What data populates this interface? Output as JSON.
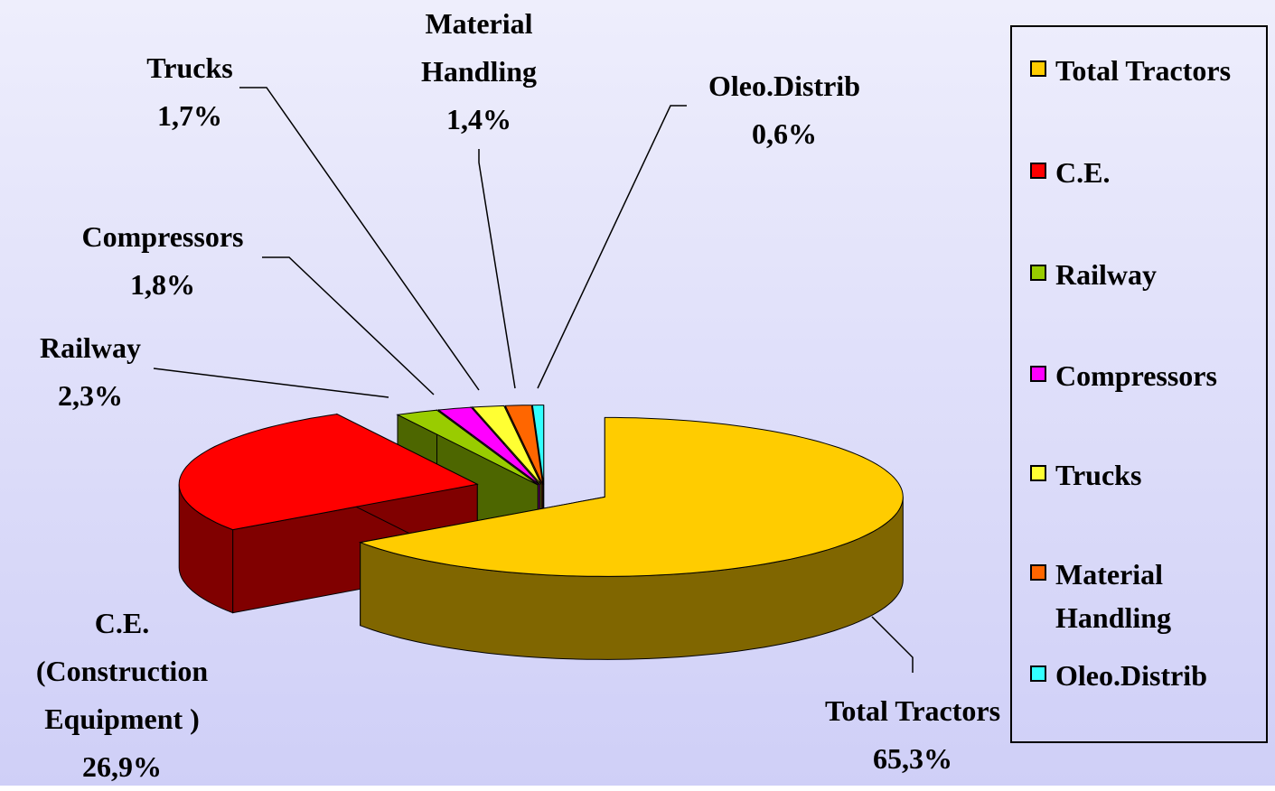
{
  "chart_data": {
    "type": "pie3d",
    "categories": [
      "Total Tractors",
      "C.E.",
      "Railway",
      "Compressors",
      "Trucks",
      "Material Handling",
      "Oleo.Distrib"
    ],
    "labels": [
      "Total Tractors",
      "C.E. (Construction Equipment )",
      "Railway",
      "Compressors",
      "Trucks",
      "Material Handling",
      "Oleo.Distrib"
    ],
    "values": [
      65.3,
      26.9,
      2.3,
      1.8,
      1.7,
      1.4,
      0.6
    ],
    "value_labels": [
      "65,3%",
      "26,9%",
      "2,3%",
      "1,8%",
      "1,7%",
      "1,4%",
      "0,6%"
    ],
    "colors": [
      "#ffcc00",
      "#ff0000",
      "#99cc00",
      "#ff00ff",
      "#ffff33",
      "#ff6600",
      "#33ffff"
    ],
    "legend": "right"
  }
}
